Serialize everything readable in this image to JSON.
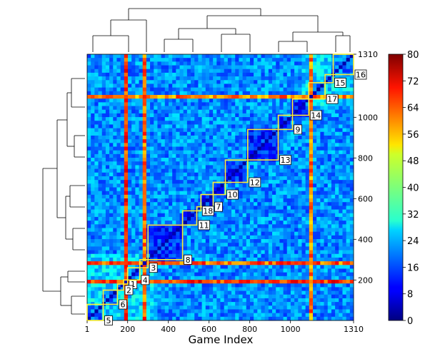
{
  "chart_data": {
    "type": "heatmap",
    "title": "",
    "xlabel": "Game Index",
    "ylabel": "",
    "xlim": [
      1,
      1310
    ],
    "ylim": [
      1,
      1310
    ],
    "x_ticks": [
      "1",
      "200",
      "400",
      "600",
      "800",
      "1000",
      "1310"
    ],
    "x_tick_values": [
      1,
      200,
      400,
      600,
      800,
      1000,
      1310
    ],
    "y_ticks": [
      "200",
      "400",
      "600",
      "800",
      "1000",
      "1310"
    ],
    "y_tick_values": [
      200,
      400,
      600,
      800,
      1000,
      1310
    ],
    "colorbar": {
      "min": 0,
      "max": 80,
      "ticks": [
        "0",
        "8",
        "16",
        "24",
        "32",
        "40",
        "48",
        "56",
        "64",
        "72",
        "80"
      ],
      "colormap": "jet"
    },
    "dendrograms": [
      "top",
      "left"
    ],
    "clusters": [
      {
        "label": "1",
        "start": 180,
        "end": 200
      },
      {
        "label": "2",
        "start": 150,
        "end": 180
      },
      {
        "label": "3",
        "start": 260,
        "end": 300
      },
      {
        "label": "4",
        "start": 200,
        "end": 260
      },
      {
        "label": "5",
        "start": 1,
        "end": 80
      },
      {
        "label": "6",
        "start": 80,
        "end": 150
      },
      {
        "label": "7",
        "start": 560,
        "end": 620
      },
      {
        "label": "8",
        "start": 300,
        "end": 470
      },
      {
        "label": "9",
        "start": 940,
        "end": 1010
      },
      {
        "label": "10",
        "start": 620,
        "end": 680
      },
      {
        "label": "11",
        "start": 470,
        "end": 540
      },
      {
        "label": "12",
        "start": 680,
        "end": 790
      },
      {
        "label": "13",
        "start": 790,
        "end": 940
      },
      {
        "label": "14",
        "start": 1010,
        "end": 1090
      },
      {
        "label": "15",
        "start": 1170,
        "end": 1210
      },
      {
        "label": "16",
        "start": 1210,
        "end": 1310
      },
      {
        "label": "17",
        "start": 1090,
        "end": 1170
      },
      {
        "label": "18",
        "start": 540,
        "end": 560
      }
    ],
    "hot_bands": [
      {
        "start": 180,
        "end": 200,
        "level": 66
      },
      {
        "start": 270,
        "end": 300,
        "level": 62
      },
      {
        "start": 1090,
        "end": 1115,
        "level": 60
      }
    ]
  },
  "colors": {
    "cluster_box": "#ffee33",
    "label_box_bg": "#ffffff",
    "axis": "#000000"
  }
}
